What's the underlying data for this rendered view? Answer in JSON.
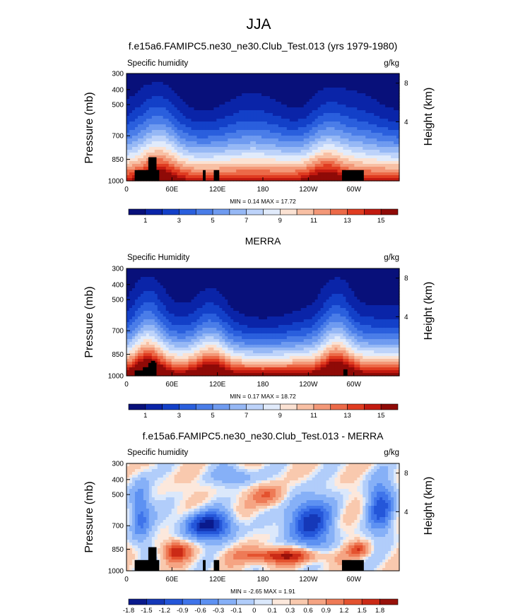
{
  "figure": {
    "title": "JJA"
  },
  "chart_data": [
    {
      "type": "heatmap",
      "subtitle": "f.e15a6.FAMIPC5.ne30_ne30.Club_Test.013 (yrs 1979-1980)",
      "label_left": "Specific humidity",
      "label_right": "g/kg",
      "ylabel": "Pressure (mb)",
      "ylabel_right": "Height (km)",
      "x_ticks": [
        "0",
        "60E",
        "120E",
        "180",
        "120W",
        "60W"
      ],
      "y_ticks": [
        "300",
        "400",
        "500",
        "700",
        "850",
        "1000"
      ],
      "y_ticks_right": [
        "8",
        "4"
      ],
      "min_text": "MIN =  0.14  MAX =  17.72",
      "min": 0.14,
      "max": 17.72,
      "colorbar_labels": [
        "1",
        "3",
        "5",
        "7",
        "9",
        "11",
        "13",
        "15"
      ]
    },
    {
      "type": "heatmap",
      "subtitle": "MERRA",
      "label_left": "Specific Humidity",
      "label_right": "g/kg",
      "ylabel": "Pressure (mb)",
      "ylabel_right": "Height (km)",
      "x_ticks": [
        "0",
        "60E",
        "120E",
        "180",
        "120W",
        "60W"
      ],
      "y_ticks": [
        "300",
        "400",
        "500",
        "700",
        "850",
        "1000"
      ],
      "y_ticks_right": [
        "8",
        "4"
      ],
      "min_text": "MIN =  0.17  MAX =  18.72",
      "min": 0.17,
      "max": 18.72,
      "colorbar_labels": [
        "1",
        "3",
        "5",
        "7",
        "9",
        "11",
        "13",
        "15"
      ]
    },
    {
      "type": "heatmap",
      "subtitle": "f.e15a6.FAMIPC5.ne30_ne30.Club_Test.013 - MERRA",
      "label_left": "Specific humidity",
      "label_right": "g/kg",
      "ylabel": "Pressure (mb)",
      "ylabel_right": "Height (km)",
      "x_ticks": [
        "0",
        "60E",
        "120E",
        "180",
        "120W",
        "60W"
      ],
      "y_ticks": [
        "300",
        "400",
        "500",
        "700",
        "850",
        "1000"
      ],
      "y_ticks_right": [
        "8",
        "4"
      ],
      "min_text": "MIN =  -2.65  MAX =  1.91",
      "min": -2.65,
      "max": 1.91,
      "colorbar_labels": [
        "-1.8",
        "-1.5",
        "-1.2",
        "-0.9",
        "-0.6",
        "-0.3",
        "-0.1",
        "0",
        "0.1",
        "0.3",
        "0.6",
        "0.9",
        "1.2",
        "1.5",
        "1.8"
      ]
    }
  ],
  "colors": {
    "abs_scale": [
      "#08107a",
      "#0a24a8",
      "#1340c8",
      "#2a5fdd",
      "#4a7de8",
      "#6f9bf0",
      "#96b8f5",
      "#bdd3fa",
      "#e1ebfb",
      "#fbe2d3",
      "#f8c0a4",
      "#f39878",
      "#ec6a48",
      "#e03c21",
      "#c21a10",
      "#8f0a07"
    ],
    "diff_scale": [
      "#0a1a8c",
      "#1538b8",
      "#2456d9",
      "#3f74ea",
      "#5d91f2",
      "#86b0f7",
      "#b1cdfa",
      "#dbe8fb",
      "#fce8dc",
      "#f9c9ae",
      "#f5a483",
      "#ee7a56",
      "#e4522f",
      "#cb2a16",
      "#98110a"
    ],
    "topography": "#000000"
  }
}
